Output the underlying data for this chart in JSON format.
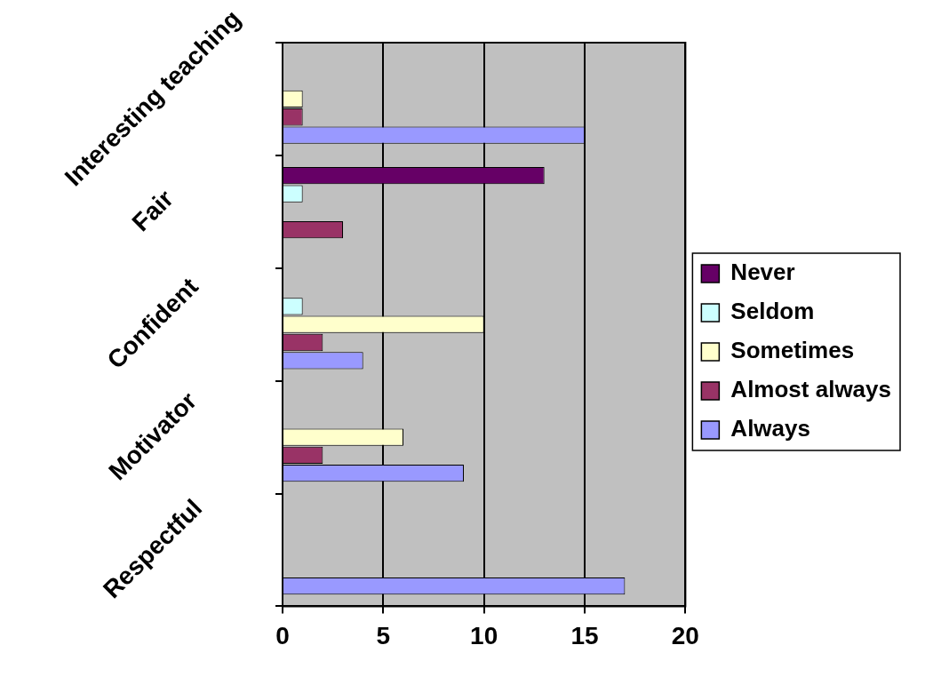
{
  "chart_data": {
    "type": "bar",
    "orientation": "horizontal",
    "categories": [
      "Interesting teaching",
      "Fair",
      "Confident",
      "Motivator",
      "Respectful"
    ],
    "series": [
      {
        "name": "Never",
        "color": "#660066",
        "values": [
          null,
          13,
          null,
          null,
          null
        ]
      },
      {
        "name": "Seldom",
        "color": "#ccffff",
        "values": [
          null,
          1,
          1,
          null,
          null
        ]
      },
      {
        "name": "Sometimes",
        "color": "#ffffcc",
        "values": [
          1,
          null,
          10,
          6,
          null
        ]
      },
      {
        "name": "Almost always",
        "color": "#993366",
        "values": [
          1,
          3,
          2,
          2,
          null
        ]
      },
      {
        "name": "Always",
        "color": "#9999ff",
        "values": [
          15,
          null,
          4,
          9,
          17
        ]
      }
    ],
    "xlim": [
      0,
      20
    ],
    "xticks": [
      0,
      5,
      10,
      15,
      20
    ],
    "grid": "x",
    "legend": "right"
  }
}
